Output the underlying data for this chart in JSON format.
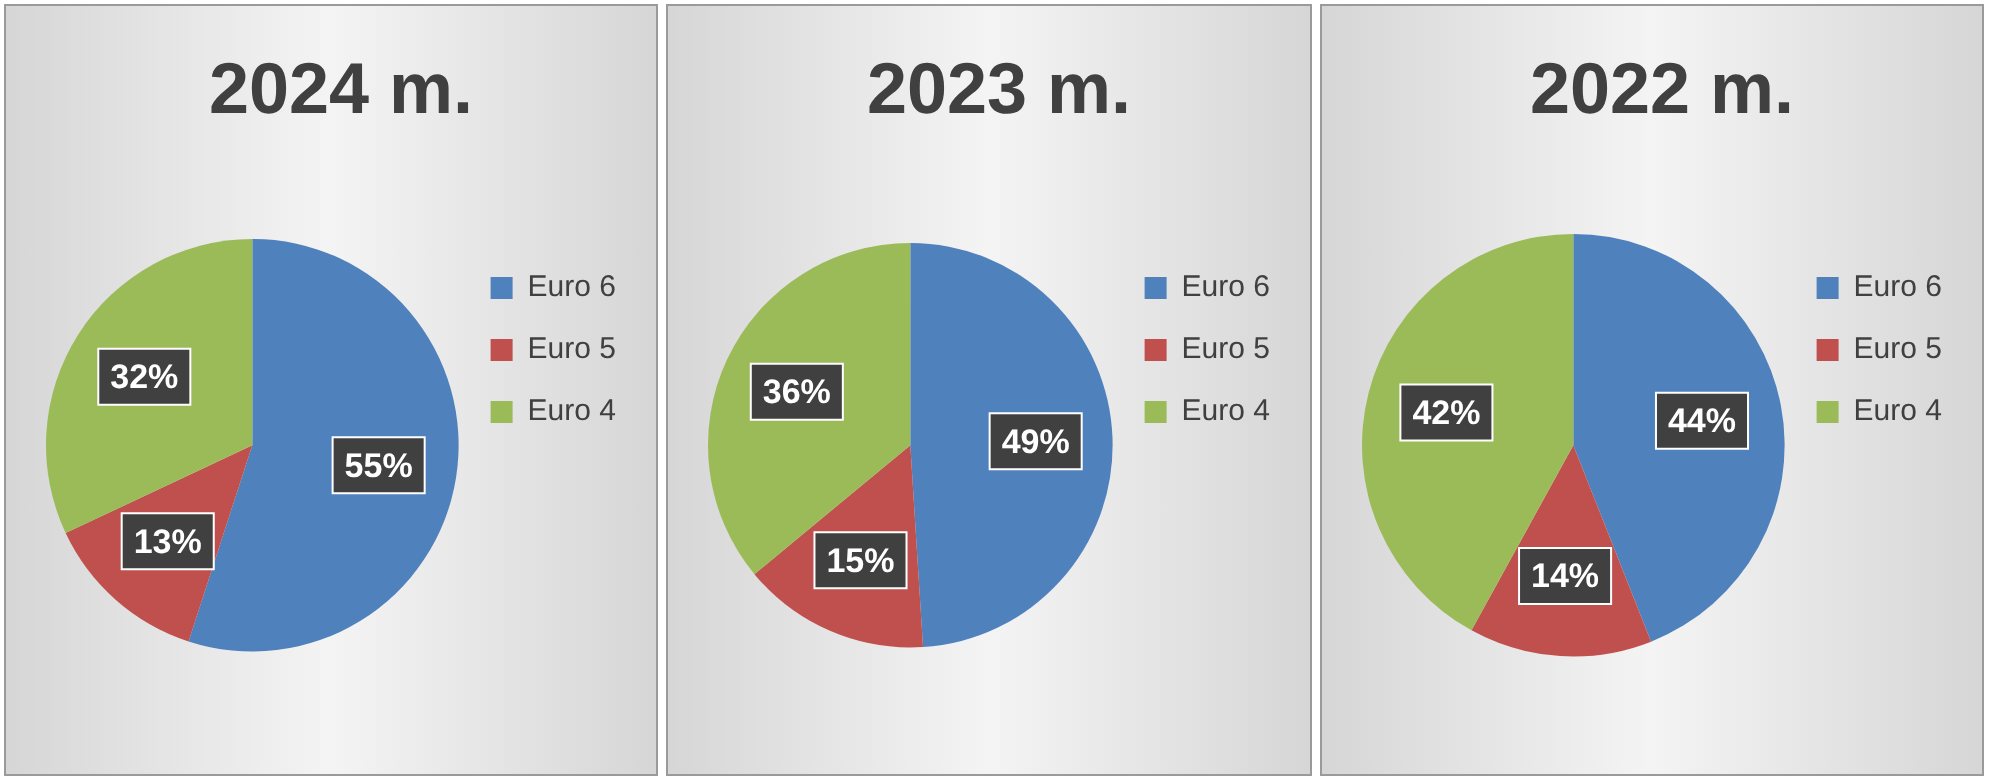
{
  "chart_data": [
    {
      "type": "pie",
      "title": "2024 m.",
      "categories": [
        "Euro 6",
        "Euro 5",
        "Euro 4"
      ],
      "values": [
        55,
        13,
        32
      ],
      "colors": [
        "#4f81bd",
        "#c0504d",
        "#9bbb59"
      ],
      "value_labels": [
        "55%",
        "13%",
        "32%"
      ],
      "legend": "right"
    },
    {
      "type": "pie",
      "title": "2023 m.",
      "categories": [
        "Euro 6",
        "Euro 5",
        "Euro 4"
      ],
      "values": [
        49,
        15,
        36
      ],
      "colors": [
        "#4f81bd",
        "#c0504d",
        "#9bbb59"
      ],
      "value_labels": [
        "49%",
        "15%",
        "36%"
      ],
      "legend": "right"
    },
    {
      "type": "pie",
      "title": "2022 m.",
      "categories": [
        "Euro 6",
        "Euro 5",
        "Euro 4"
      ],
      "values": [
        44,
        14,
        42
      ],
      "colors": [
        "#4f81bd",
        "#c0504d",
        "#9bbb59"
      ],
      "value_labels": [
        "44%",
        "14%",
        "42%"
      ],
      "legend": "right"
    }
  ]
}
